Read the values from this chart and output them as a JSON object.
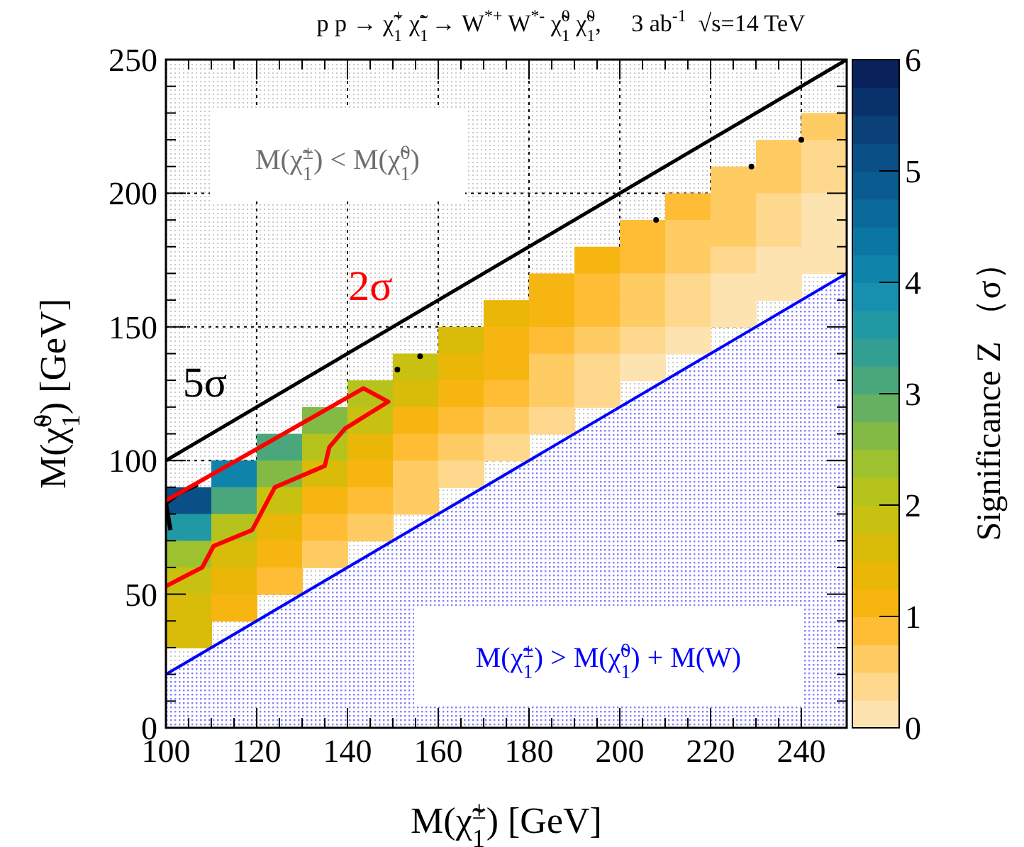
{
  "chart_data": {
    "type": "heatmap",
    "title": "p p → χ̃$_{1}$$^{+}$ χ̃$_{1}$$^{-}$ → W$^{*+}$ W$^{*-}$ χ̃$_{1}$$^{0}$ χ̃$_{1}$$^{0}$,     3 ab$^{-1}$  √s=14 TeV",
    "xlabel": "M(χ̃$_{1}$$^{±}$) [GeV]",
    "ylabel": "M(χ̃$_{1}$$^{0}$) [GeV]",
    "clabel": "Significance Z （σ）",
    "xlim": [
      100,
      250
    ],
    "ylim": [
      0,
      250
    ],
    "xticks": [
      100,
      120,
      140,
      160,
      180,
      200,
      220,
      240
    ],
    "yticks": [
      0,
      50,
      100,
      150,
      200,
      250
    ],
    "clim": [
      0,
      6
    ],
    "cticks": [
      0,
      1,
      2,
      3,
      4,
      5,
      6
    ],
    "grid": true,
    "annotations": [
      "M(χ̃$_{1}$$^{±}$) < M(χ̃$_{1}$$^{0}$)"
    ],
    "x": [
      105,
      115,
      125,
      135,
      145,
      155,
      165,
      175,
      185,
      195,
      205,
      215,
      225,
      235,
      245
    ],
    "y": [
      225,
      215,
      205,
      195,
      185,
      175,
      165,
      155,
      145,
      135,
      125,
      115,
      105,
      95,
      85,
      75,
      65,
      55,
      45,
      35
    ],
    "cells": [
      [
        null,
        null,
        null,
        null,
        null,
        null,
        null,
        null,
        null,
        null,
        null,
        null,
        null,
        null,
        0.5
      ],
      [
        null,
        null,
        null,
        null,
        null,
        null,
        null,
        null,
        null,
        null,
        null,
        null,
        null,
        0.6,
        0.4
      ],
      [
        null,
        null,
        null,
        null,
        null,
        null,
        null,
        null,
        null,
        null,
        null,
        null,
        0.7,
        0.5,
        0.3
      ],
      [
        null,
        null,
        null,
        null,
        null,
        null,
        null,
        null,
        null,
        null,
        null,
        0.8,
        0.6,
        0.4,
        0.2
      ],
      [
        null,
        null,
        null,
        null,
        null,
        null,
        null,
        null,
        null,
        null,
        0.9,
        0.7,
        0.5,
        0.3,
        0.1
      ],
      [
        null,
        null,
        null,
        null,
        null,
        null,
        null,
        null,
        null,
        1,
        0.9,
        0.6,
        0.3,
        0.2,
        0.1
      ],
      [
        null,
        null,
        null,
        null,
        null,
        null,
        null,
        null,
        1.1,
        0.9,
        0.7,
        0.4,
        0.2,
        0.1,
        null
      ],
      [
        null,
        null,
        null,
        null,
        null,
        null,
        null,
        1.3,
        1,
        0.8,
        0.5,
        0.3,
        0.1,
        null,
        null
      ],
      [
        null,
        null,
        null,
        null,
        null,
        null,
        1.6,
        1.2,
        0.9,
        0.6,
        0.3,
        0.2,
        null,
        null,
        null
      ],
      [
        null,
        null,
        null,
        null,
        null,
        1.9,
        1.4,
        1,
        0.7,
        0.4,
        0.2,
        null,
        null,
        null,
        null
      ],
      [
        null,
        null,
        null,
        null,
        2.2,
        1.6,
        1.1,
        0.8,
        0.5,
        0.3,
        null,
        null,
        null,
        null,
        null
      ],
      [
        null,
        null,
        null,
        2.7,
        1.9,
        1.2,
        0.9,
        0.5,
        0.3,
        null,
        null,
        null,
        null,
        null,
        null
      ],
      [
        null,
        null,
        3.2,
        2.2,
        1.4,
        0.9,
        0.6,
        0.4,
        null,
        null,
        null,
        null,
        null,
        null,
        null
      ],
      [
        null,
        4,
        2.6,
        1.6,
        1,
        0.7,
        0.4,
        null,
        null,
        null,
        null,
        null,
        null,
        null,
        null
      ],
      [
        5,
        3,
        1.9,
        1.1,
        0.8,
        0.5,
        null,
        null,
        null,
        null,
        null,
        null,
        null,
        null,
        null
      ],
      [
        3.5,
        2.2,
        1.3,
        0.9,
        0.6,
        null,
        null,
        null,
        null,
        null,
        null,
        null,
        null,
        null,
        null
      ],
      [
        2.3,
        1.6,
        1.1,
        0.7,
        null,
        null,
        null,
        null,
        null,
        null,
        null,
        null,
        null,
        null,
        null
      ],
      [
        1.8,
        1.3,
        0.9,
        null,
        null,
        null,
        null,
        null,
        null,
        null,
        null,
        null,
        null,
        null,
        null
      ],
      [
        1.6,
        1.2,
        null,
        null,
        null,
        null,
        null,
        null,
        null,
        null,
        null,
        null,
        null,
        null,
        null
      ],
      [
        1.5,
        null,
        null,
        null,
        null,
        null,
        null,
        null,
        null,
        null,
        null,
        null,
        null,
        null,
        null
      ]
    ],
    "series": [
      {
        "type": "area",
        "name": "M(χ̃$_{1}$$^{±}$) > M(χ̃$_{1}$$^{0}$) + M(W)",
        "color": "#0000ff",
        "x": [
          100,
          250
        ],
        "values": [
          20,
          170
        ]
      },
      {
        "type": "line",
        "color": "#000000",
        "x": [
          100,
          250
        ],
        "values": [
          100,
          250
        ]
      },
      {
        "type": "line",
        "name": "5σ",
        "color": "#000000",
        "x": [
          101,
          100,
          103,
          107
        ],
        "values": [
          74,
          84,
          88,
          91
        ]
      },
      {
        "type": "line",
        "name": "2σ",
        "color": "#ff0000",
        "x": [
          100,
          108,
          110.5,
          119,
          124,
          135,
          136,
          139.5,
          149,
          143.5,
          100
        ],
        "values": [
          53,
          60,
          68,
          74,
          90,
          98,
          105,
          112,
          122,
          127,
          85
        ]
      },
      {
        "type": "scatter",
        "marker": "circle",
        "color": "#000000",
        "x": [
          151,
          156,
          208,
          229,
          240
        ],
        "values": [
          134,
          139,
          190,
          210,
          220
        ]
      }
    ]
  }
}
